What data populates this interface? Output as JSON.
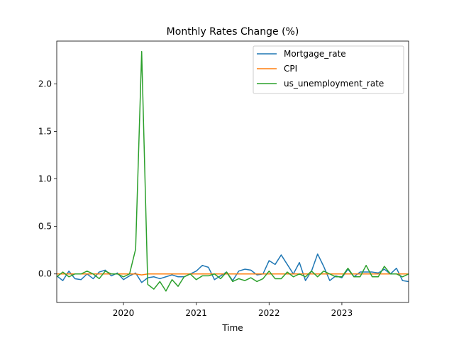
{
  "chart_data": {
    "type": "line",
    "title": "Monthly Rates Change (%)",
    "xlabel": "Time",
    "ylabel": "",
    "x_ticks": [
      "2020",
      "2021",
      "2022",
      "2023"
    ],
    "y_ticks": [
      "0.0",
      "0.5",
      "1.0",
      "1.5",
      "2.0"
    ],
    "xlim": [
      "2019-02",
      "2023-12"
    ],
    "ylim": [
      -0.3,
      2.45
    ],
    "legend_position": "top-right",
    "grid": false,
    "x": [
      "2019-02",
      "2019-03",
      "2019-04",
      "2019-05",
      "2019-06",
      "2019-07",
      "2019-08",
      "2019-09",
      "2019-10",
      "2019-11",
      "2019-12",
      "2020-01",
      "2020-02",
      "2020-03",
      "2020-04",
      "2020-05",
      "2020-06",
      "2020-07",
      "2020-08",
      "2020-09",
      "2020-10",
      "2020-11",
      "2020-12",
      "2021-01",
      "2021-02",
      "2021-03",
      "2021-04",
      "2021-05",
      "2021-06",
      "2021-07",
      "2021-08",
      "2021-09",
      "2021-10",
      "2021-11",
      "2021-12",
      "2022-01",
      "2022-02",
      "2022-03",
      "2022-04",
      "2022-05",
      "2022-06",
      "2022-07",
      "2022-08",
      "2022-09",
      "2022-10",
      "2022-11",
      "2022-12",
      "2023-01",
      "2023-02",
      "2023-03",
      "2023-04",
      "2023-05",
      "2023-06",
      "2023-07",
      "2023-08",
      "2023-09",
      "2023-10",
      "2023-11",
      "2023-12"
    ],
    "series": [
      {
        "name": "Mortgage_rate",
        "color": "#1f77b4",
        "values": [
          -0.02,
          -0.07,
          0.03,
          -0.05,
          -0.06,
          0.0,
          -0.05,
          0.02,
          0.04,
          -0.02,
          0.01,
          -0.06,
          -0.02,
          0.01,
          -0.09,
          -0.04,
          -0.03,
          -0.05,
          -0.03,
          -0.01,
          -0.03,
          -0.03,
          0.0,
          0.03,
          0.09,
          0.07,
          -0.06,
          -0.02,
          0.02,
          -0.07,
          0.03,
          0.05,
          0.04,
          -0.01,
          0.0,
          0.14,
          0.1,
          0.2,
          0.1,
          0.0,
          0.12,
          -0.07,
          0.03,
          0.21,
          0.08,
          -0.07,
          -0.02,
          -0.04,
          0.05,
          -0.03,
          0.02,
          0.02,
          0.02,
          0.01,
          0.05,
          0.0,
          0.06,
          -0.07,
          -0.08
        ]
      },
      {
        "name": "CPI",
        "color": "#ff7f0e",
        "values": [
          0.0,
          0.0,
          0.0,
          0.0,
          0.0,
          0.0,
          0.0,
          0.0,
          0.0,
          0.0,
          0.0,
          0.0,
          0.0,
          0.0,
          -0.01,
          0.0,
          0.0,
          0.0,
          0.0,
          0.0,
          0.0,
          0.0,
          0.0,
          0.0,
          0.0,
          0.0,
          0.0,
          0.0,
          0.0,
          0.0,
          0.0,
          0.0,
          0.0,
          0.0,
          0.0,
          0.0,
          0.0,
          0.0,
          0.0,
          0.0,
          0.0,
          0.0,
          0.0,
          0.0,
          0.0,
          0.0,
          0.0,
          0.0,
          0.0,
          0.0,
          0.0,
          0.0,
          0.0,
          0.0,
          0.0,
          0.0,
          0.0,
          0.0,
          0.0
        ]
      },
      {
        "name": "us_unemployment_rate",
        "color": "#2ca02c",
        "values": [
          -0.03,
          0.02,
          -0.03,
          0.0,
          0.0,
          0.03,
          0.0,
          -0.05,
          0.03,
          0.0,
          0.0,
          -0.03,
          0.0,
          0.26,
          2.34,
          -0.11,
          -0.16,
          -0.08,
          -0.18,
          -0.06,
          -0.13,
          -0.03,
          0.0,
          -0.06,
          -0.02,
          -0.02,
          0.0,
          -0.05,
          0.02,
          -0.08,
          -0.05,
          -0.07,
          -0.04,
          -0.08,
          -0.05,
          0.03,
          -0.05,
          -0.05,
          0.02,
          -0.03,
          0.0,
          -0.03,
          0.03,
          -0.03,
          0.03,
          0.0,
          -0.03,
          -0.03,
          0.06,
          -0.03,
          -0.03,
          0.09,
          -0.03,
          -0.03,
          0.08,
          0.0,
          0.0,
          -0.03,
          0.0
        ]
      }
    ]
  }
}
